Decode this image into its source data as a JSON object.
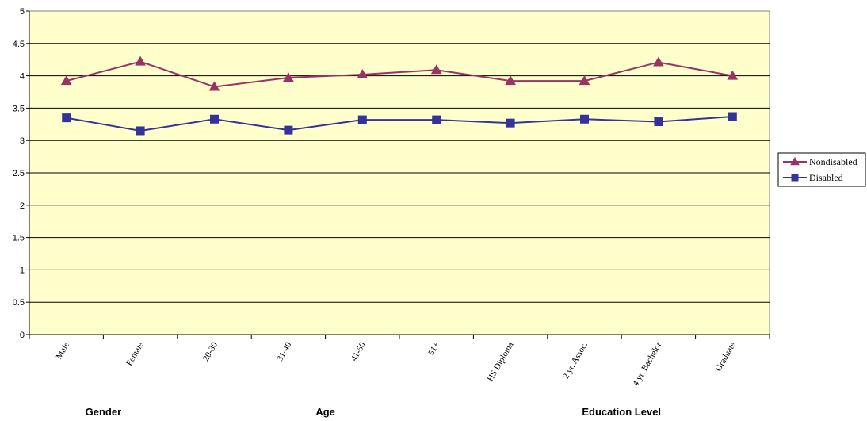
{
  "chart_data": {
    "type": "line",
    "categories": [
      "Male",
      "Female",
      "20-30",
      "31-40",
      "41-50",
      "51+",
      "HS Diploma",
      "2 yr. Assoc.",
      "4 yr. Bachelor",
      "Graduate"
    ],
    "groups": [
      {
        "label": "Gender",
        "start": 0,
        "end": 1
      },
      {
        "label": "Age",
        "start": 2,
        "end": 5
      },
      {
        "label": "Education Level",
        "start": 6,
        "end": 9
      }
    ],
    "series": [
      {
        "name": "Nondisabled",
        "marker": "triangle",
        "color": "#993366",
        "values": [
          3.92,
          4.22,
          3.83,
          3.97,
          4.02,
          4.09,
          3.92,
          3.92,
          4.21,
          4.0
        ]
      },
      {
        "name": "Disabled",
        "marker": "square",
        "color": "#333399",
        "values": [
          3.35,
          3.15,
          3.33,
          3.16,
          3.32,
          3.32,
          3.27,
          3.33,
          3.29,
          3.37
        ]
      }
    ],
    "ylim": [
      0,
      5
    ],
    "yticks": [
      "0",
      "0.5",
      "1",
      "1.5",
      "2",
      "2.5",
      "3",
      "3.5",
      "4",
      "4.5",
      "5"
    ],
    "grid": true,
    "legend": "right",
    "plot_background": "#ffffcc"
  }
}
